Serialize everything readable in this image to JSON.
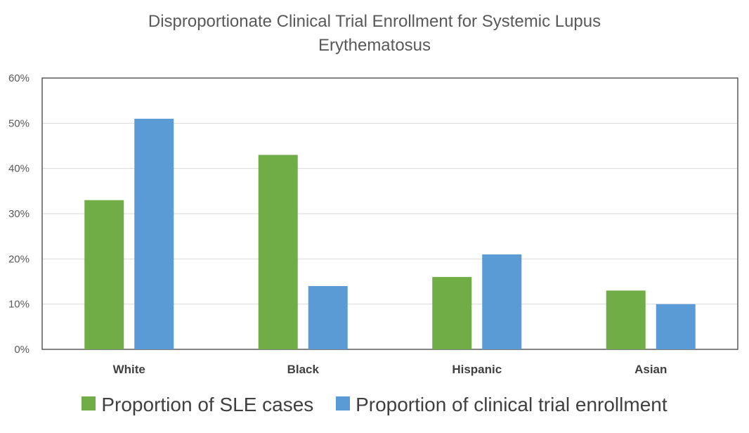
{
  "chart_data": {
    "type": "bar",
    "title_lines": [
      "Disproportionate Clinical Trial Enrollment for Systemic Lupus",
      "Erythematosus"
    ],
    "categories": [
      "White",
      "Black",
      "Hispanic",
      "Asian"
    ],
    "series": [
      {
        "name": "Proportion of SLE cases",
        "color": "#70AD47",
        "values": [
          33,
          43,
          16,
          13
        ]
      },
      {
        "name": "Proportion of clinical trial enrollment",
        "color": "#5B9BD5",
        "values": [
          51,
          14,
          21,
          10
        ]
      }
    ],
    "yticks": [
      "0%",
      "10%",
      "20%",
      "30%",
      "40%",
      "50%",
      "60%"
    ],
    "ylim": [
      0,
      60
    ],
    "xlabel": "",
    "ylabel": "",
    "legend_position": "bottom",
    "grid": true
  }
}
